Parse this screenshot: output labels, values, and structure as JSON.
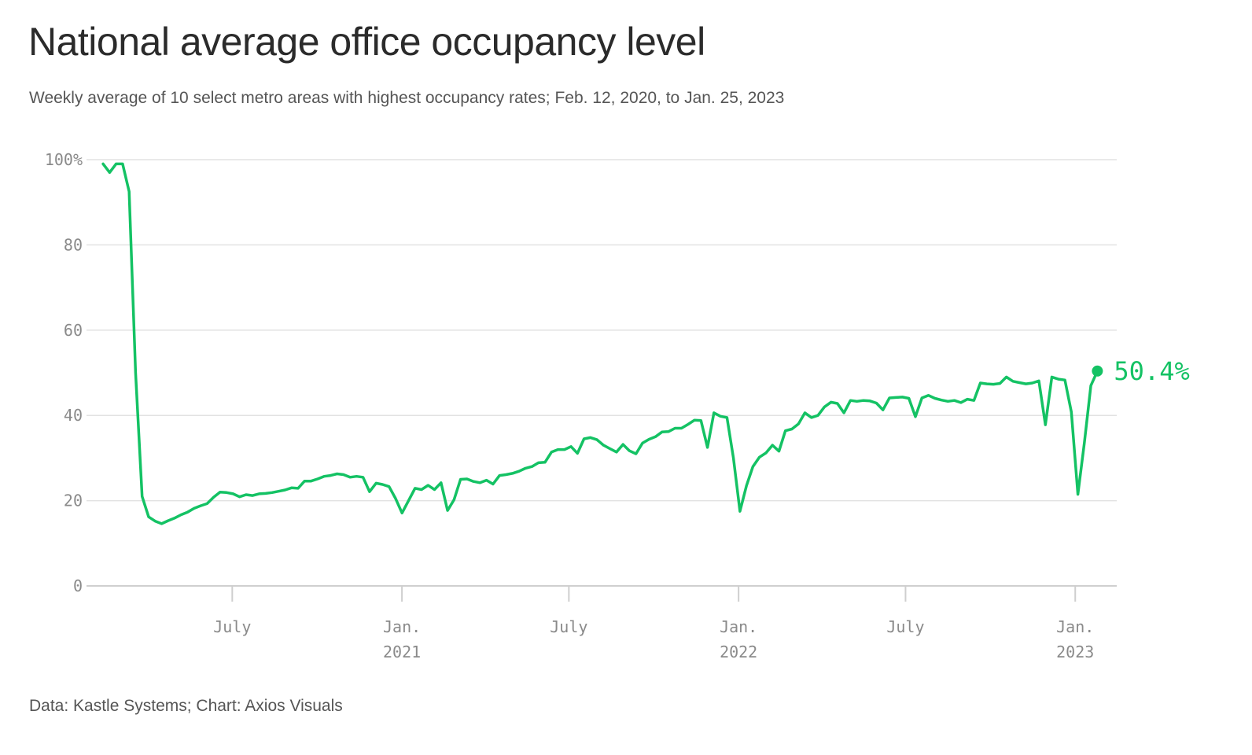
{
  "chart_data": {
    "type": "line",
    "title": "National average office occupancy level",
    "subtitle": "Weekly average of 10 select metro areas with highest occupancy rates; Feb. 12, 2020, to Jan. 25, 2023",
    "source": "Data: Kastle Systems; Chart: Axios Visuals",
    "xlabel": "",
    "ylabel": "",
    "start_date": "2020-02-12",
    "end_date": "2023-01-25",
    "x_range": [
      "2020-01-25",
      "2023-02-15"
    ],
    "ylim": [
      0,
      100
    ],
    "y_ticks": [
      {
        "value": 0,
        "label": "0"
      },
      {
        "value": 20,
        "label": "20"
      },
      {
        "value": 40,
        "label": "40"
      },
      {
        "value": 60,
        "label": "60"
      },
      {
        "value": 80,
        "label": "80"
      },
      {
        "value": 100,
        "label": "100%"
      }
    ],
    "x_ticks": [
      {
        "date": "2020-07-01",
        "label": "July",
        "sublabel": ""
      },
      {
        "date": "2021-01-01",
        "label": "Jan.",
        "sublabel": "2021"
      },
      {
        "date": "2021-07-01",
        "label": "July",
        "sublabel": ""
      },
      {
        "date": "2022-01-01",
        "label": "Jan.",
        "sublabel": "2022"
      },
      {
        "date": "2022-07-01",
        "label": "July",
        "sublabel": ""
      },
      {
        "date": "2023-01-01",
        "label": "Jan.",
        "sublabel": "2023"
      }
    ],
    "grid": true,
    "line_color": "#14c264",
    "grid_color": "#e2e2e2",
    "final_label": "50.4%",
    "series": [
      {
        "values": [
          99,
          97,
          99,
          99,
          92.5,
          50,
          21,
          16.2,
          15.2,
          14.6,
          15.3,
          15.9,
          16.7,
          17.3,
          18.2,
          18.8,
          19.3,
          20.8,
          22,
          21.9,
          21.6,
          20.9,
          21.4,
          21.2,
          21.6,
          21.7,
          21.9,
          22.2,
          22.5,
          23,
          22.9,
          24.6,
          24.6,
          25.1,
          25.7,
          25.9,
          26.3,
          26.1,
          25.5,
          25.7,
          25.5,
          22.1,
          24.1,
          23.8,
          23.3,
          20.5,
          17.1,
          20,
          22.9,
          22.6,
          23.6,
          22.6,
          24.2,
          17.7,
          20.2,
          25,
          25.1,
          24.5,
          24.2,
          24.8,
          23.9,
          25.9,
          26.1,
          26.4,
          26.9,
          27.6,
          28,
          28.9,
          29,
          31.4,
          32,
          32,
          32.7,
          31.1,
          34.5,
          34.8,
          34.3,
          33,
          32.2,
          31.4,
          33.2,
          31.7,
          31,
          33.5,
          34.4,
          35,
          36.1,
          36.2,
          37,
          37,
          37.9,
          38.9,
          38.8,
          32.5,
          40.6,
          39.8,
          39.5,
          30,
          17.5,
          23.5,
          28,
          30.2,
          31.2,
          33,
          31.6,
          36.4,
          36.8,
          38,
          40.6,
          39.5,
          40,
          42,
          43.1,
          42.8,
          40.6,
          43.5,
          43.3,
          43.5,
          43.4,
          42.9,
          41.3,
          44.1,
          44.2,
          44.3,
          44,
          39.7,
          44.1,
          44.7,
          44,
          43.6,
          43.3,
          43.5,
          43,
          43.8,
          43.5,
          47.6,
          47.4,
          47.3,
          47.5,
          49,
          48,
          47.7,
          47.4,
          47.6,
          48.1,
          37.8,
          49,
          48.5,
          48.3,
          40.8,
          21.5,
          33.5,
          47,
          50.4
        ]
      }
    ]
  }
}
